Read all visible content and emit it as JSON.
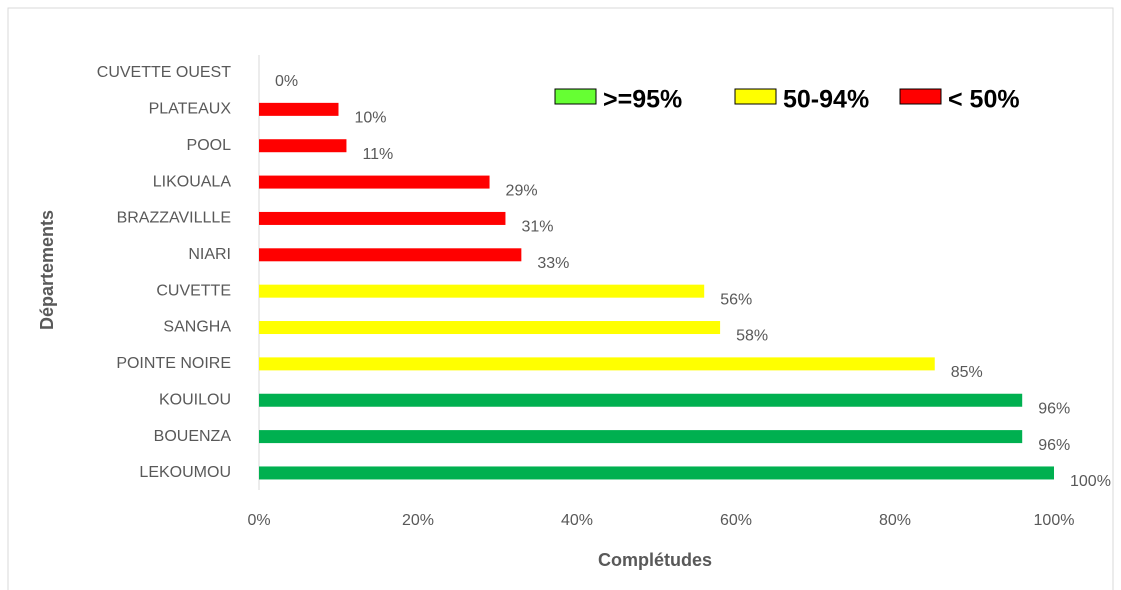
{
  "chart_data": {
    "type": "bar",
    "orientation": "horizontal",
    "x_label": "Complétudes",
    "y_label": "Départements",
    "categories": [
      "CUVETTE OUEST",
      "PLATEAUX",
      "POOL",
      "LIKOUALA",
      "BRAZZAVILLLE",
      "NIARI",
      "CUVETTE",
      "SANGHA",
      "POINTE NOIRE",
      "KOUILOU",
      "BOUENZA",
      "LEKOUMOU"
    ],
    "values": [
      0,
      10,
      11,
      29,
      31,
      33,
      56,
      58,
      85,
      96,
      96,
      100
    ],
    "value_labels": [
      "0%",
      "10%",
      "11%",
      "29%",
      "31%",
      "33%",
      "56%",
      "58%",
      "85%",
      "96%",
      "96%",
      "100%"
    ],
    "colors": [
      "#ff0000",
      "#ff0000",
      "#ff0000",
      "#ff0000",
      "#ff0000",
      "#ff0000",
      "#ffff00",
      "#ffff00",
      "#ffff00",
      "#00b050",
      "#00b050",
      "#00b050"
    ],
    "xlim": [
      0,
      100
    ],
    "xticks": [
      {
        "value": 0,
        "label": "0%"
      },
      {
        "value": 20,
        "label": "20%"
      },
      {
        "value": 40,
        "label": "40%"
      },
      {
        "value": 60,
        "label": "60%"
      },
      {
        "value": 80,
        "label": "80%"
      },
      {
        "value": 100,
        "label": "100%"
      }
    ],
    "legend": [
      {
        "name": ">=95%",
        "color": "#66ff33"
      },
      {
        "name": "50-94%",
        "color": "#ffff00"
      },
      {
        "name": "< 50%",
        "color": "#ff0000"
      }
    ]
  }
}
